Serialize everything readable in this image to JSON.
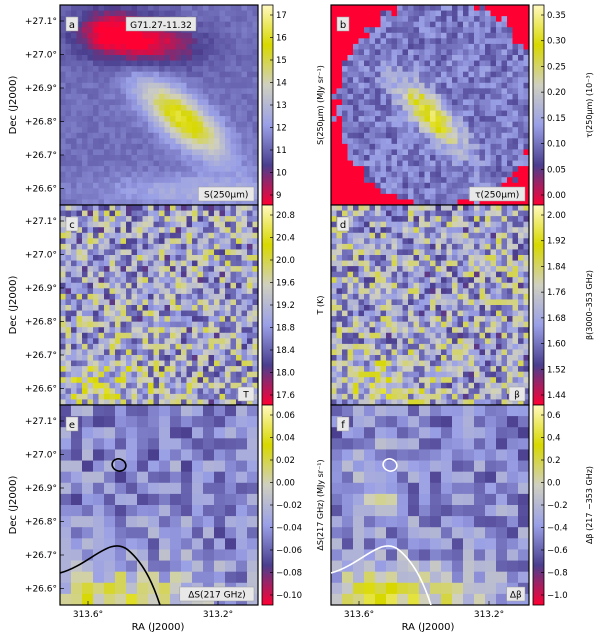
{
  "figure": {
    "target_name": "G71.27-11.32",
    "common_x_axis": {
      "label": "RA (J2000)",
      "ticks": [
        "313.6°",
        "313.2°"
      ]
    },
    "common_y_axis": {
      "label": "Dec (J2000)",
      "ticks": [
        "+27.1°",
        "+27.0°",
        "+26.9°",
        "+26.8°",
        "+26.7°",
        "+26.6°"
      ]
    },
    "panels": [
      {
        "letter": "a",
        "tag": "S(250µm)",
        "cbar_label": "S(250µm) (MJy sr⁻¹)",
        "cbar_ticks": [
          "17",
          "16",
          "15",
          "14",
          "13",
          "12",
          "11",
          "10",
          "9"
        ],
        "colormap": [
          "#ff0033",
          "#4a3f8f",
          "#9aa0e6",
          "#d0d0c0",
          "#d8d800",
          "#fff8c0"
        ]
      },
      {
        "letter": "b",
        "tag": "τ(250µm)",
        "cbar_label": "τ(250µm) (10⁻³)",
        "cbar_ticks": [
          "0.35",
          "0.30",
          "0.25",
          "0.20",
          "0.15",
          "0.10",
          "0.05",
          "0.00"
        ],
        "colormap": [
          "#ff0033",
          "#4a3f8f",
          "#9aa0e6",
          "#d0d0c0",
          "#d8d800",
          "#fff8c0"
        ]
      },
      {
        "letter": "c",
        "tag": "T",
        "cbar_label": "T (K)",
        "cbar_ticks": [
          "20.8",
          "20.4",
          "20.0",
          "19.6",
          "19.2",
          "18.8",
          "18.4",
          "18.0",
          "17.6"
        ],
        "colormap": [
          "#ff0033",
          "#4a3f8f",
          "#9aa0e6",
          "#d0d0c0",
          "#d8d800",
          "#fff8c0"
        ]
      },
      {
        "letter": "d",
        "tag": "β",
        "cbar_label": "β(3000–353 GHz)",
        "cbar_ticks": [
          "2.00",
          "1.92",
          "1.84",
          "1.76",
          "1.68",
          "1.60",
          "1.52",
          "1.44"
        ],
        "colormap": [
          "#ff0033",
          "#4a3f8f",
          "#9aa0e6",
          "#d0d0c0",
          "#d8d800",
          "#fff8c0"
        ]
      },
      {
        "letter": "e",
        "tag": "ΔS(217 GHz)",
        "cbar_label": "ΔS(217 GHz) (MJy sr⁻¹)",
        "cbar_ticks": [
          "0.06",
          "0.04",
          "0.02",
          "0.00",
          "−0.02",
          "−0.04",
          "−0.06",
          "−0.08",
          "−0.10"
        ],
        "colormap": [
          "#ff0033",
          "#4a3f8f",
          "#9aa0e6",
          "#d0d0c0",
          "#d8d800",
          "#fff8c0"
        ]
      },
      {
        "letter": "f",
        "tag": "Δβ",
        "cbar_label": "Δβ (217 −353 GHz)",
        "cbar_ticks": [
          "0.6",
          "0.4",
          "0.2",
          "0.0",
          "−0.2",
          "−0.4",
          "−0.6",
          "−0.8",
          "−1.0"
        ],
        "colormap": [
          "#ff0033",
          "#4a3f8f",
          "#9aa0e6",
          "#d0d0c0",
          "#d8d800",
          "#fff8c0"
        ]
      }
    ]
  }
}
